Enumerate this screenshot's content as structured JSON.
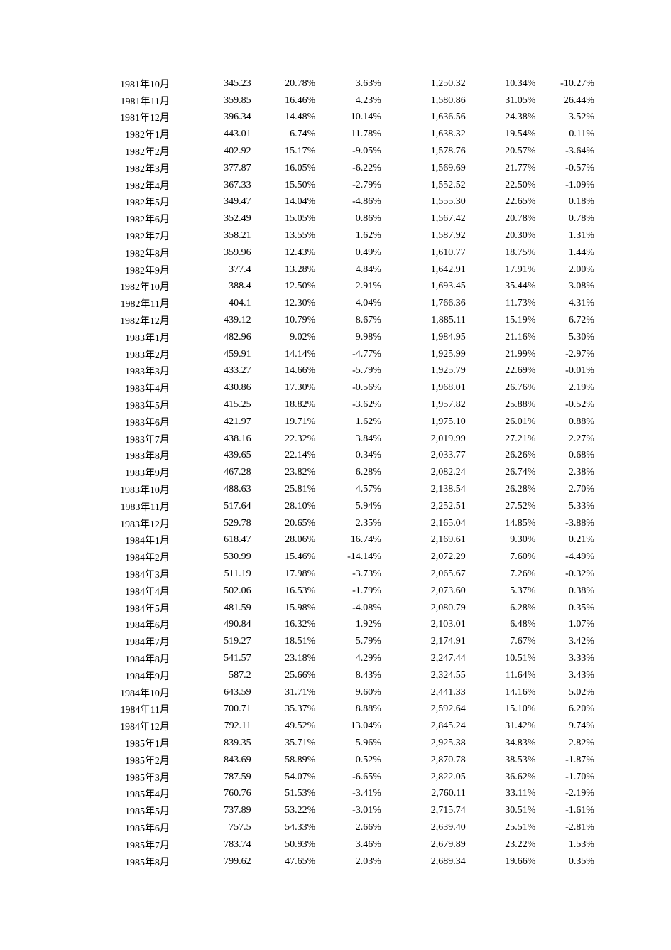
{
  "table": {
    "columns": [
      "date",
      "value1",
      "pct1",
      "pct2",
      "value2",
      "pct3",
      "pct4"
    ],
    "rows": [
      [
        "1981年10月",
        "345.23",
        "20.78%",
        "3.63%",
        "1,250.32",
        "10.34%",
        "-10.27%"
      ],
      [
        "1981年11月",
        "359.85",
        "16.46%",
        "4.23%",
        "1,580.86",
        "31.05%",
        "26.44%"
      ],
      [
        "1981年12月",
        "396.34",
        "14.48%",
        "10.14%",
        "1,636.56",
        "24.38%",
        "3.52%"
      ],
      [
        "1982年1月",
        "443.01",
        "6.74%",
        "11.78%",
        "1,638.32",
        "19.54%",
        "0.11%"
      ],
      [
        "1982年2月",
        "402.92",
        "15.17%",
        "-9.05%",
        "1,578.76",
        "20.57%",
        "-3.64%"
      ],
      [
        "1982年3月",
        "377.87",
        "16.05%",
        "-6.22%",
        "1,569.69",
        "21.77%",
        "-0.57%"
      ],
      [
        "1982年4月",
        "367.33",
        "15.50%",
        "-2.79%",
        "1,552.52",
        "22.50%",
        "-1.09%"
      ],
      [
        "1982年5月",
        "349.47",
        "14.04%",
        "-4.86%",
        "1,555.30",
        "22.65%",
        "0.18%"
      ],
      [
        "1982年6月",
        "352.49",
        "15.05%",
        "0.86%",
        "1,567.42",
        "20.78%",
        "0.78%"
      ],
      [
        "1982年7月",
        "358.21",
        "13.55%",
        "1.62%",
        "1,587.92",
        "20.30%",
        "1.31%"
      ],
      [
        "1982年8月",
        "359.96",
        "12.43%",
        "0.49%",
        "1,610.77",
        "18.75%",
        "1.44%"
      ],
      [
        "1982年9月",
        "377.4",
        "13.28%",
        "4.84%",
        "1,642.91",
        "17.91%",
        "2.00%"
      ],
      [
        "1982年10月",
        "388.4",
        "12.50%",
        "2.91%",
        "1,693.45",
        "35.44%",
        "3.08%"
      ],
      [
        "1982年11月",
        "404.1",
        "12.30%",
        "4.04%",
        "1,766.36",
        "11.73%",
        "4.31%"
      ],
      [
        "1982年12月",
        "439.12",
        "10.79%",
        "8.67%",
        "1,885.11",
        "15.19%",
        "6.72%"
      ],
      [
        "1983年1月",
        "482.96",
        "9.02%",
        "9.98%",
        "1,984.95",
        "21.16%",
        "5.30%"
      ],
      [
        "1983年2月",
        "459.91",
        "14.14%",
        "-4.77%",
        "1,925.99",
        "21.99%",
        "-2.97%"
      ],
      [
        "1983年3月",
        "433.27",
        "14.66%",
        "-5.79%",
        "1,925.79",
        "22.69%",
        "-0.01%"
      ],
      [
        "1983年4月",
        "430.86",
        "17.30%",
        "-0.56%",
        "1,968.01",
        "26.76%",
        "2.19%"
      ],
      [
        "1983年5月",
        "415.25",
        "18.82%",
        "-3.62%",
        "1,957.82",
        "25.88%",
        "-0.52%"
      ],
      [
        "1983年6月",
        "421.97",
        "19.71%",
        "1.62%",
        "1,975.10",
        "26.01%",
        "0.88%"
      ],
      [
        "1983年7月",
        "438.16",
        "22.32%",
        "3.84%",
        "2,019.99",
        "27.21%",
        "2.27%"
      ],
      [
        "1983年8月",
        "439.65",
        "22.14%",
        "0.34%",
        "2,033.77",
        "26.26%",
        "0.68%"
      ],
      [
        "1983年9月",
        "467.28",
        "23.82%",
        "6.28%",
        "2,082.24",
        "26.74%",
        "2.38%"
      ],
      [
        "1983年10月",
        "488.63",
        "25.81%",
        "4.57%",
        "2,138.54",
        "26.28%",
        "2.70%"
      ],
      [
        "1983年11月",
        "517.64",
        "28.10%",
        "5.94%",
        "2,252.51",
        "27.52%",
        "5.33%"
      ],
      [
        "1983年12月",
        "529.78",
        "20.65%",
        "2.35%",
        "2,165.04",
        "14.85%",
        "-3.88%"
      ],
      [
        "1984年1月",
        "618.47",
        "28.06%",
        "16.74%",
        "2,169.61",
        "9.30%",
        "0.21%"
      ],
      [
        "1984年2月",
        "530.99",
        "15.46%",
        "-14.14%",
        "2,072.29",
        "7.60%",
        "-4.49%"
      ],
      [
        "1984年3月",
        "511.19",
        "17.98%",
        "-3.73%",
        "2,065.67",
        "7.26%",
        "-0.32%"
      ],
      [
        "1984年4月",
        "502.06",
        "16.53%",
        "-1.79%",
        "2,073.60",
        "5.37%",
        "0.38%"
      ],
      [
        "1984年5月",
        "481.59",
        "15.98%",
        "-4.08%",
        "2,080.79",
        "6.28%",
        "0.35%"
      ],
      [
        "1984年6月",
        "490.84",
        "16.32%",
        "1.92%",
        "2,103.01",
        "6.48%",
        "1.07%"
      ],
      [
        "1984年7月",
        "519.27",
        "18.51%",
        "5.79%",
        "2,174.91",
        "7.67%",
        "3.42%"
      ],
      [
        "1984年8月",
        "541.57",
        "23.18%",
        "4.29%",
        "2,247.44",
        "10.51%",
        "3.33%"
      ],
      [
        "1984年9月",
        "587.2",
        "25.66%",
        "8.43%",
        "2,324.55",
        "11.64%",
        "3.43%"
      ],
      [
        "1984年10月",
        "643.59",
        "31.71%",
        "9.60%",
        "2,441.33",
        "14.16%",
        "5.02%"
      ],
      [
        "1984年11月",
        "700.71",
        "35.37%",
        "8.88%",
        "2,592.64",
        "15.10%",
        "6.20%"
      ],
      [
        "1984年12月",
        "792.11",
        "49.52%",
        "13.04%",
        "2,845.24",
        "31.42%",
        "9.74%"
      ],
      [
        "1985年1月",
        "839.35",
        "35.71%",
        "5.96%",
        "2,925.38",
        "34.83%",
        "2.82%"
      ],
      [
        "1985年2月",
        "843.69",
        "58.89%",
        "0.52%",
        "2,870.78",
        "38.53%",
        "-1.87%"
      ],
      [
        "1985年3月",
        "787.59",
        "54.07%",
        "-6.65%",
        "2,822.05",
        "36.62%",
        "-1.70%"
      ],
      [
        "1985年4月",
        "760.76",
        "51.53%",
        "-3.41%",
        "2,760.11",
        "33.11%",
        "-2.19%"
      ],
      [
        "1985年5月",
        "737.89",
        "53.22%",
        "-3.01%",
        "2,715.74",
        "30.51%",
        "-1.61%"
      ],
      [
        "1985年6月",
        "757.5",
        "54.33%",
        "2.66%",
        "2,639.40",
        "25.51%",
        "-2.81%"
      ],
      [
        "1985年7月",
        "783.74",
        "50.93%",
        "3.46%",
        "2,679.89",
        "23.22%",
        "1.53%"
      ],
      [
        "1985年8月",
        "799.62",
        "47.65%",
        "2.03%",
        "2,689.34",
        "19.66%",
        "0.35%"
      ]
    ],
    "col_classes": [
      "col-date",
      "col-val1",
      "col-pct1",
      "col-pct2",
      "col-val2",
      "col-pct3",
      "col-pct4"
    ]
  }
}
